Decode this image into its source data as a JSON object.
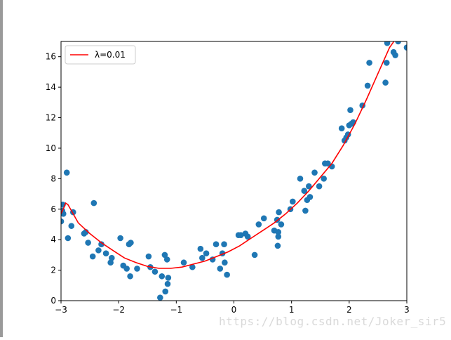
{
  "chart_data": {
    "type": "scatter",
    "title": "",
    "xlabel": "",
    "ylabel": "",
    "xlim": [
      -3,
      3
    ],
    "ylim": [
      0,
      17
    ],
    "x_ticks": [
      "−3",
      "−2",
      "−1",
      "0",
      "1",
      "2",
      "3"
    ],
    "y_ticks": [
      "0",
      "2",
      "4",
      "6",
      "8",
      "10",
      "12",
      "14",
      "16"
    ],
    "grid": false,
    "legend_position": "top-left",
    "series": [
      {
        "kind": "scatter",
        "color": "#1f77b4",
        "points": [
          [
            -3.0,
            5.2
          ],
          [
            -2.98,
            5.9
          ],
          [
            -2.97,
            6.3
          ],
          [
            -2.96,
            5.7
          ],
          [
            -2.9,
            8.4
          ],
          [
            -2.88,
            4.1
          ],
          [
            -2.82,
            4.9
          ],
          [
            -2.79,
            5.8
          ],
          [
            -2.6,
            4.4
          ],
          [
            -2.57,
            4.5
          ],
          [
            -2.53,
            3.8
          ],
          [
            -2.45,
            2.9
          ],
          [
            -2.43,
            6.4
          ],
          [
            -2.35,
            3.3
          ],
          [
            -2.3,
            3.7
          ],
          [
            -2.22,
            3.1
          ],
          [
            -2.14,
            2.5
          ],
          [
            -2.12,
            2.8
          ],
          [
            -1.97,
            4.1
          ],
          [
            -1.92,
            2.3
          ],
          [
            -1.86,
            2.1
          ],
          [
            -1.82,
            3.7
          ],
          [
            -1.8,
            1.6
          ],
          [
            -1.79,
            3.8
          ],
          [
            -1.68,
            2.1
          ],
          [
            -1.48,
            2.9
          ],
          [
            -1.45,
            2.2
          ],
          [
            -1.37,
            1.9
          ],
          [
            -1.28,
            0.2
          ],
          [
            -1.25,
            1.6
          ],
          [
            -1.2,
            3.0
          ],
          [
            -1.19,
            0.6
          ],
          [
            -1.16,
            2.7
          ],
          [
            -1.15,
            1.1
          ],
          [
            -1.14,
            1.5
          ],
          [
            -0.87,
            2.5
          ],
          [
            -0.72,
            2.2
          ],
          [
            -0.58,
            3.4
          ],
          [
            -0.55,
            2.8
          ],
          [
            -0.48,
            3.1
          ],
          [
            -0.37,
            2.7
          ],
          [
            -0.31,
            3.7
          ],
          [
            -0.24,
            2.1
          ],
          [
            -0.2,
            3.1
          ],
          [
            -0.17,
            3.7
          ],
          [
            -0.16,
            2.5
          ],
          [
            -0.12,
            1.7
          ],
          [
            0.08,
            4.3
          ],
          [
            0.12,
            4.3
          ],
          [
            0.2,
            4.4
          ],
          [
            0.24,
            4.2
          ],
          [
            0.36,
            3.0
          ],
          [
            0.43,
            5.0
          ],
          [
            0.52,
            5.4
          ],
          [
            0.7,
            4.6
          ],
          [
            0.75,
            5.3
          ],
          [
            0.76,
            3.6
          ],
          [
            0.77,
            4.2
          ],
          [
            0.77,
            4.5
          ],
          [
            0.78,
            5.8
          ],
          [
            0.82,
            5.0
          ],
          [
            0.98,
            6.0
          ],
          [
            1.02,
            6.5
          ],
          [
            1.15,
            8.0
          ],
          [
            1.22,
            7.2
          ],
          [
            1.24,
            5.9
          ],
          [
            1.27,
            6.6
          ],
          [
            1.3,
            7.5
          ],
          [
            1.32,
            6.8
          ],
          [
            1.4,
            8.4
          ],
          [
            1.48,
            7.5
          ],
          [
            1.56,
            8.0
          ],
          [
            1.58,
            9.0
          ],
          [
            1.63,
            9.0
          ],
          [
            1.7,
            8.8
          ],
          [
            1.87,
            11.3
          ],
          [
            1.92,
            10.5
          ],
          [
            1.95,
            10.7
          ],
          [
            1.98,
            10.9
          ],
          [
            2.0,
            11.5
          ],
          [
            2.02,
            12.5
          ],
          [
            2.04,
            11.6
          ],
          [
            2.07,
            11.7
          ],
          [
            2.23,
            12.8
          ],
          [
            2.32,
            14.1
          ],
          [
            2.35,
            15.6
          ],
          [
            2.63,
            14.3
          ],
          [
            2.65,
            15.6
          ],
          [
            2.66,
            16.9
          ],
          [
            2.77,
            16.3
          ],
          [
            2.8,
            16.1
          ],
          [
            2.85,
            17.0
          ],
          [
            3.0,
            16.6
          ]
        ]
      },
      {
        "kind": "line",
        "name": "λ=0.01",
        "color": "#ff0000",
        "points": [
          [
            -3.0,
            5.7
          ],
          [
            -2.95,
            6.1
          ],
          [
            -2.92,
            6.4
          ],
          [
            -2.88,
            6.3
          ],
          [
            -2.82,
            5.9
          ],
          [
            -2.7,
            5.1
          ],
          [
            -2.5,
            4.4
          ],
          [
            -2.3,
            3.8
          ],
          [
            -2.1,
            3.3
          ],
          [
            -1.9,
            2.8
          ],
          [
            -1.7,
            2.5
          ],
          [
            -1.5,
            2.25
          ],
          [
            -1.3,
            2.12
          ],
          [
            -1.1,
            2.12
          ],
          [
            -0.9,
            2.2
          ],
          [
            -0.7,
            2.4
          ],
          [
            -0.5,
            2.6
          ],
          [
            -0.3,
            2.9
          ],
          [
            -0.1,
            3.2
          ],
          [
            0.1,
            3.6
          ],
          [
            0.3,
            4.1
          ],
          [
            0.5,
            4.6
          ],
          [
            0.7,
            5.1
          ],
          [
            0.9,
            5.7
          ],
          [
            1.1,
            6.4
          ],
          [
            1.3,
            7.2
          ],
          [
            1.5,
            8.1
          ],
          [
            1.7,
            9.0
          ],
          [
            1.9,
            10.2
          ],
          [
            2.1,
            11.6
          ],
          [
            2.3,
            13.2
          ],
          [
            2.5,
            14.9
          ],
          [
            2.7,
            16.6
          ],
          [
            2.85,
            17.4
          ]
        ]
      }
    ]
  },
  "watermark": "https://blog.csdn.net/Joker_sir5"
}
